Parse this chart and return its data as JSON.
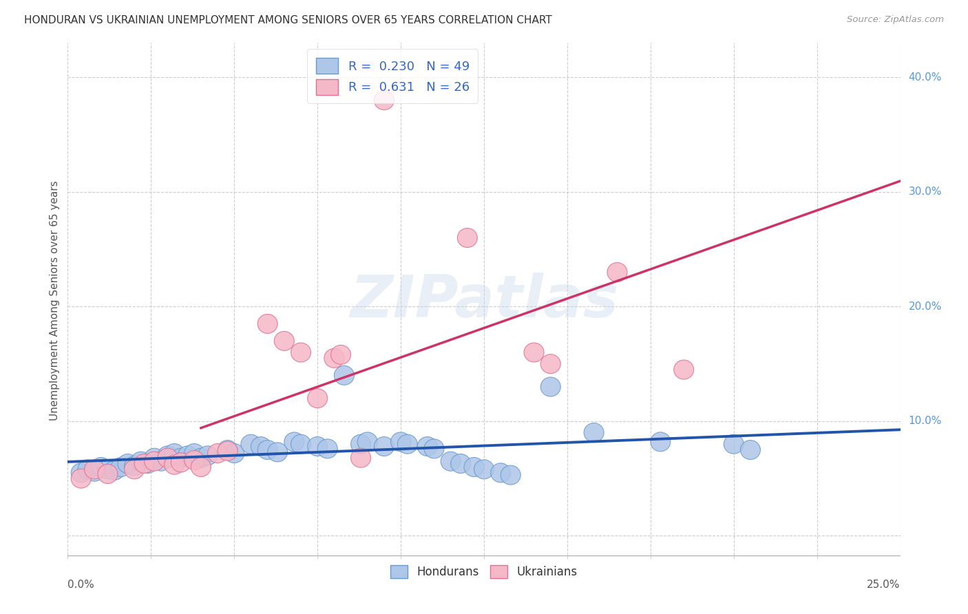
{
  "title": "HONDURAN VS UKRAINIAN UNEMPLOYMENT AMONG SENIORS OVER 65 YEARS CORRELATION CHART",
  "source": "Source: ZipAtlas.com",
  "ylabel": "Unemployment Among Seniors over 65 years",
  "watermark": "ZIPatlas",
  "xmin": 0.0,
  "xmax": 0.25,
  "ymin": -0.02,
  "ymax": 0.43,
  "ytick_vals": [
    0.0,
    0.1,
    0.2,
    0.3,
    0.4
  ],
  "ytick_labels": [
    "",
    "10.0%",
    "20.0%",
    "30.0%",
    "40.0%"
  ],
  "n_xgrid": 11,
  "honduran_color": "#aec6e8",
  "honduran_edge": "#6699cc",
  "ukrainian_color": "#f5b8c8",
  "ukrainian_edge": "#e07090",
  "trendline_honduran_color": "#2255aa",
  "trendline_ukrainian_color": "#cc3366",
  "trendline_extension_color": "#e8a0b8",
  "R_honduran": "0.230",
  "N_honduran": "49",
  "R_ukrainian": "0.631",
  "N_ukrainian": "26",
  "honduran_points": [
    [
      0.004,
      0.055
    ],
    [
      0.006,
      0.058
    ],
    [
      0.008,
      0.056
    ],
    [
      0.01,
      0.06
    ],
    [
      0.012,
      0.058
    ],
    [
      0.014,
      0.057
    ],
    [
      0.016,
      0.06
    ],
    [
      0.018,
      0.063
    ],
    [
      0.02,
      0.061
    ],
    [
      0.022,
      0.065
    ],
    [
      0.024,
      0.063
    ],
    [
      0.026,
      0.068
    ],
    [
      0.028,
      0.065
    ],
    [
      0.03,
      0.07
    ],
    [
      0.032,
      0.072
    ],
    [
      0.034,
      0.068
    ],
    [
      0.036,
      0.07
    ],
    [
      0.038,
      0.072
    ],
    [
      0.04,
      0.068
    ],
    [
      0.042,
      0.07
    ],
    [
      0.048,
      0.075
    ],
    [
      0.05,
      0.072
    ],
    [
      0.055,
      0.08
    ],
    [
      0.058,
      0.078
    ],
    [
      0.06,
      0.075
    ],
    [
      0.063,
      0.073
    ],
    [
      0.068,
      0.082
    ],
    [
      0.07,
      0.08
    ],
    [
      0.075,
      0.078
    ],
    [
      0.078,
      0.076
    ],
    [
      0.083,
      0.14
    ],
    [
      0.088,
      0.08
    ],
    [
      0.09,
      0.082
    ],
    [
      0.095,
      0.078
    ],
    [
      0.1,
      0.082
    ],
    [
      0.102,
      0.08
    ],
    [
      0.108,
      0.078
    ],
    [
      0.11,
      0.076
    ],
    [
      0.115,
      0.065
    ],
    [
      0.118,
      0.063
    ],
    [
      0.122,
      0.06
    ],
    [
      0.125,
      0.058
    ],
    [
      0.13,
      0.055
    ],
    [
      0.133,
      0.053
    ],
    [
      0.145,
      0.13
    ],
    [
      0.158,
      0.09
    ],
    [
      0.178,
      0.082
    ],
    [
      0.2,
      0.08
    ],
    [
      0.205,
      0.075
    ]
  ],
  "ukrainian_points": [
    [
      0.004,
      0.05
    ],
    [
      0.008,
      0.058
    ],
    [
      0.012,
      0.054
    ],
    [
      0.02,
      0.058
    ],
    [
      0.023,
      0.063
    ],
    [
      0.026,
      0.065
    ],
    [
      0.03,
      0.068
    ],
    [
      0.032,
      0.062
    ],
    [
      0.034,
      0.064
    ],
    [
      0.038,
      0.066
    ],
    [
      0.04,
      0.06
    ],
    [
      0.045,
      0.072
    ],
    [
      0.048,
      0.074
    ],
    [
      0.06,
      0.185
    ],
    [
      0.065,
      0.17
    ],
    [
      0.07,
      0.16
    ],
    [
      0.075,
      0.12
    ],
    [
      0.08,
      0.155
    ],
    [
      0.082,
      0.158
    ],
    [
      0.088,
      0.068
    ],
    [
      0.095,
      0.38
    ],
    [
      0.12,
      0.26
    ],
    [
      0.14,
      0.16
    ],
    [
      0.145,
      0.15
    ],
    [
      0.165,
      0.23
    ],
    [
      0.185,
      0.145
    ]
  ]
}
